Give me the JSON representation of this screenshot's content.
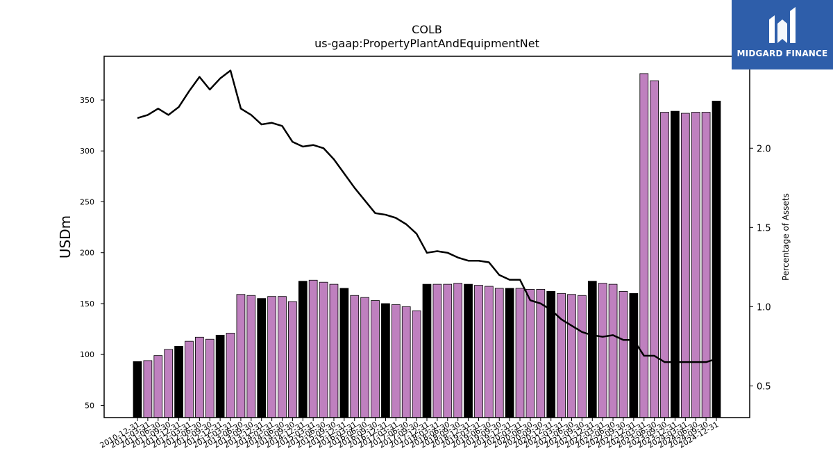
{
  "chart_data": {
    "type": "bar",
    "title": "COLB",
    "subtitle": "us-gaap:PropertyPlantAndEquipmentNet",
    "ylabel": "USDm",
    "y2label": "Percentage of Assets",
    "ylim": [
      38,
      393
    ],
    "y2lim": [
      0.3,
      2.58
    ],
    "yticks": [
      50,
      100,
      150,
      200,
      250,
      300,
      350
    ],
    "y2ticks": [
      0.5,
      1.0,
      1.5,
      2.0
    ],
    "y2tick_labels": [
      "0.5",
      "1.0",
      "1.5",
      "2.0"
    ],
    "x_tick_labels": [
      "2010-12-31",
      "2011-03-31",
      "2011-06-30",
      "2011-09-30",
      "2011-12-31",
      "2012-03-31",
      "2012-06-30",
      "2012-09-30",
      "2012-12-31",
      "2013-03-31",
      "2013-06-30",
      "2013-09-30",
      "2013-12-31",
      "2014-03-31",
      "2014-06-30",
      "2014-09-30",
      "2014-12-31",
      "2015-03-31",
      "2015-06-30",
      "2015-09-30",
      "2015-12-31",
      "2016-03-31",
      "2016-06-30",
      "2016-09-30",
      "2016-12-31",
      "2017-03-31",
      "2017-06-30",
      "2017-09-30",
      "2017-12-31",
      "2018-03-31",
      "2018-06-30",
      "2018-09-30",
      "2018-12-31",
      "2019-03-31",
      "2019-06-30",
      "2019-09-30",
      "2019-12-31",
      "2020-03-31",
      "2020-06-30",
      "2020-09-30",
      "2020-12-31",
      "2021-03-31",
      "2021-06-30",
      "2021-09-30",
      "2021-12-31",
      "2022-03-31",
      "2022-06-30",
      "2022-09-30",
      "2022-12-31",
      "2023-03-31",
      "2023-06-30",
      "2023-09-30",
      "2023-12-31",
      "2024-03-31",
      "2024-06-30",
      "2024-09-30",
      "2024-12-31"
    ],
    "categories": [
      "2010-12-31",
      "2011-03-31",
      "2011-06-30",
      "2011-09-30",
      "2011-12-31",
      "2012-03-31",
      "2012-06-30",
      "2012-09-30",
      "2012-12-31",
      "2013-03-31",
      "2013-06-30",
      "2013-09-30",
      "2013-12-31",
      "2014-03-31",
      "2014-06-30",
      "2014-09-30",
      "2014-12-31",
      "2015-03-31",
      "2015-06-30",
      "2015-09-30",
      "2015-12-31",
      "2016-03-31",
      "2016-06-30",
      "2016-09-30",
      "2016-12-31",
      "2017-03-31",
      "2017-06-30",
      "2017-09-30",
      "2017-12-31",
      "2018-03-31",
      "2018-06-30",
      "2018-09-30",
      "2018-12-31",
      "2019-03-31",
      "2019-06-30",
      "2019-09-30",
      "2019-12-31",
      "2020-03-31",
      "2020-06-30",
      "2020-09-30",
      "2020-12-31",
      "2021-03-31",
      "2021-06-30",
      "2021-09-30",
      "2021-12-31",
      "2022-03-31",
      "2022-06-30",
      "2022-09-30",
      "2022-12-31",
      "2023-03-31",
      "2023-06-30",
      "2023-09-30",
      "2023-12-31",
      "2024-03-31",
      "2024-06-30",
      "2024-09-30",
      "2024-12-31"
    ],
    "values": [
      93,
      94,
      99,
      105,
      108,
      113,
      117,
      115,
      119,
      121,
      159,
      158,
      155,
      157,
      157,
      152,
      172,
      173,
      171,
      169,
      165,
      158,
      156,
      153,
      150,
      149,
      147,
      143,
      169,
      169,
      169,
      170,
      169,
      168,
      167,
      165,
      165,
      165,
      164,
      164,
      162,
      160,
      159,
      158,
      172,
      170,
      169,
      162,
      160,
      376,
      369,
      338,
      339,
      337,
      338,
      338,
      349
    ],
    "annual_flags": [
      1,
      0,
      0,
      0,
      1,
      0,
      0,
      0,
      1,
      0,
      0,
      0,
      1,
      0,
      0,
      0,
      1,
      0,
      0,
      0,
      1,
      0,
      0,
      0,
      1,
      0,
      0,
      0,
      1,
      0,
      0,
      0,
      1,
      0,
      0,
      0,
      1,
      0,
      0,
      0,
      1,
      0,
      0,
      0,
      1,
      0,
      0,
      0,
      1,
      0,
      0,
      0,
      1,
      0,
      0,
      0,
      1
    ],
    "line_values": [
      2.19,
      2.21,
      2.25,
      2.21,
      2.26,
      2.36,
      2.45,
      2.37,
      2.44,
      2.49,
      2.25,
      2.21,
      2.15,
      2.16,
      2.14,
      2.04,
      2.01,
      2.02,
      2.0,
      1.93,
      1.84,
      1.75,
      1.67,
      1.59,
      1.58,
      1.56,
      1.52,
      1.46,
      1.34,
      1.35,
      1.34,
      1.31,
      1.29,
      1.29,
      1.28,
      1.2,
      1.17,
      1.17,
      1.04,
      1.02,
      0.98,
      0.92,
      0.88,
      0.84,
      0.82,
      0.81,
      0.82,
      0.79,
      0.79,
      0.69,
      0.69,
      0.65,
      0.65,
      0.65,
      0.65,
      0.65,
      0.67
    ],
    "colors": {
      "quarter_bar": "#bf80bf",
      "annual_bar": "#000000",
      "bar_edge": "#000000",
      "line": "#000000"
    },
    "grid": false,
    "legend": "none"
  },
  "logo": {
    "text": "MIDGARD FINANCE",
    "bg": "#2e5eaa"
  }
}
